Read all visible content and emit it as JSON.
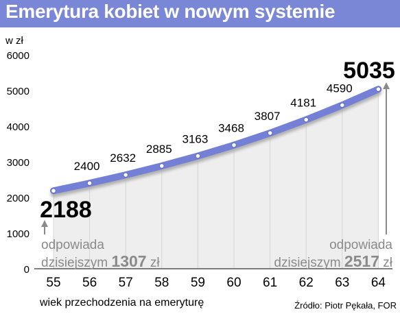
{
  "chart_data": {
    "type": "area",
    "title": "Emerytura kobiet w nowym systemie",
    "ylabel": "w zł",
    "xlabel": "wiek przechodzenia na emeryturę",
    "source": "Źródło: Piotr Pękała, FOR",
    "x": [
      55,
      56,
      57,
      58,
      59,
      60,
      61,
      62,
      63,
      64
    ],
    "values": [
      2188,
      2400,
      2632,
      2885,
      3163,
      3468,
      3807,
      4181,
      4590,
      5035
    ],
    "ylim": [
      0,
      6000
    ],
    "yticks": [
      0,
      1000,
      2000,
      3000,
      4000,
      5000,
      6000
    ],
    "grid": "vertical",
    "annotations": {
      "left": {
        "line1": "odpowiada",
        "line2_prefix": "dzisiejszym ",
        "value": "1307",
        "unit": " zł"
      },
      "right": {
        "line1": "odpowiada",
        "line2_prefix": "dzisiejszym ",
        "value": "2517",
        "unit": " zł"
      }
    },
    "colors": {
      "title_bar": "#7a87d6",
      "line": "#7480d6",
      "area": "#eeeeef",
      "annotation": "#8a8a8a",
      "grid": "#d4d4d4"
    }
  }
}
